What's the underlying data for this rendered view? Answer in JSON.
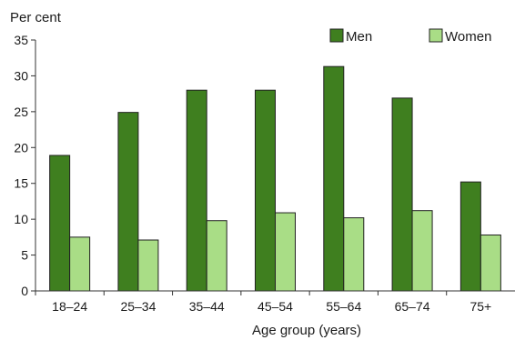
{
  "chart_data": {
    "type": "bar",
    "ylabel": "Per cent",
    "xlabel": "Age group (years)",
    "categories": [
      "18–24",
      "25–34",
      "35–44",
      "45–54",
      "55–64",
      "65–74",
      "75+"
    ],
    "series": [
      {
        "name": "Men",
        "color": "#3f7f1f",
        "values": [
          18.9,
          24.9,
          28.0,
          28.0,
          31.3,
          26.9,
          15.2
        ]
      },
      {
        "name": "Women",
        "color": "#a9dd86",
        "values": [
          7.5,
          7.1,
          9.8,
          10.9,
          10.2,
          11.2,
          7.8
        ]
      }
    ],
    "ylim": [
      0,
      35
    ],
    "yticks": [
      0,
      5,
      10,
      15,
      20,
      25,
      30,
      35
    ],
    "grid": false,
    "legend_position": "top-right"
  }
}
